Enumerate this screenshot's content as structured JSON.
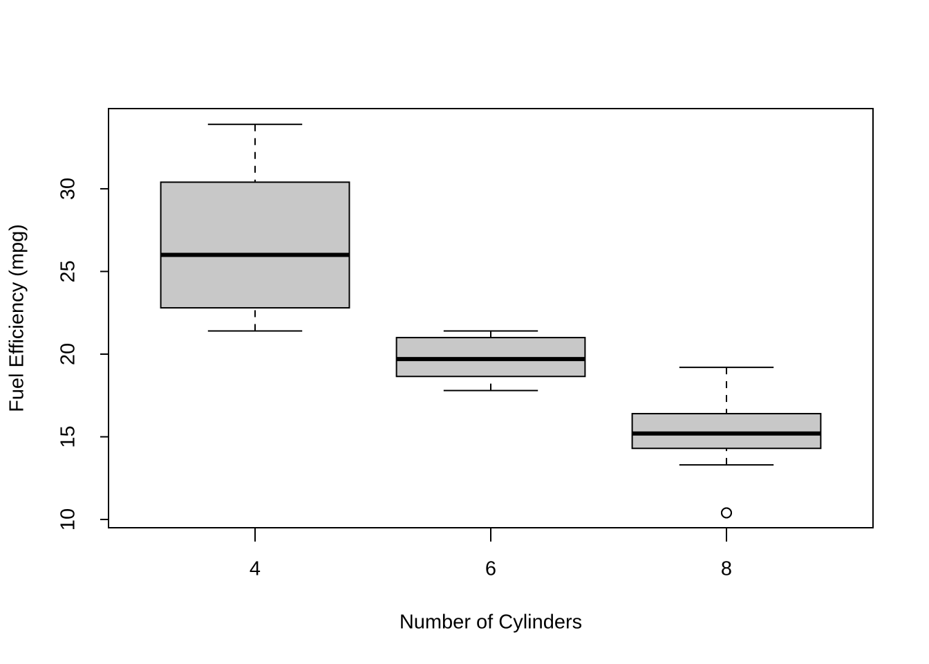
{
  "chart_data": {
    "type": "box",
    "x_label": "Number of Cylinders",
    "y_label": "Fuel Efficiency (mpg)",
    "categories": [
      "4",
      "6",
      "8"
    ],
    "boxes": [
      {
        "min": 21.4,
        "q1": 22.8,
        "median": 26.0,
        "q3": 30.4,
        "max": 33.9,
        "outliers": []
      },
      {
        "min": 17.8,
        "q1": 18.65,
        "median": 19.7,
        "q3": 21.0,
        "max": 21.4,
        "outliers": []
      },
      {
        "min": 13.3,
        "q1": 14.3,
        "median": 15.2,
        "q3": 16.4,
        "max": 19.2,
        "outliers": [
          10.4,
          10.4
        ]
      }
    ],
    "color": "#c8c8c8",
    "ylim": [
      9.5,
      34.85
    ],
    "yticks": [
      10,
      15,
      20,
      25,
      30
    ]
  }
}
